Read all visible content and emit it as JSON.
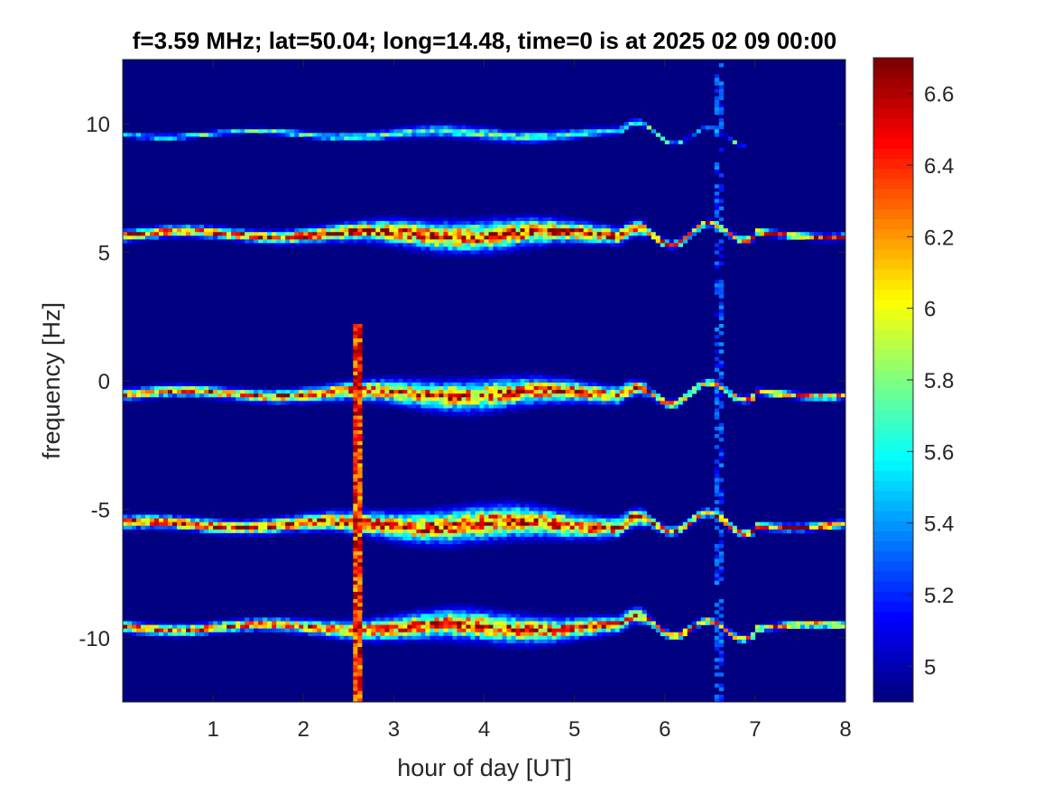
{
  "chart_data": {
    "type": "heatmap",
    "title": "f=3.59 MHz;  lat=50.04; long=14.48, time=0 is at 2025 02 09 00:00",
    "xlabel": "hour of day [UT]",
    "ylabel": "frequency [Hz]",
    "xlim": [
      0,
      8
    ],
    "ylim": [
      -12.5,
      12.5
    ],
    "x_ticks": [
      1,
      2,
      3,
      4,
      5,
      6,
      7,
      8
    ],
    "x_tick_labels": [
      "1",
      "2",
      "3",
      "4",
      "5",
      "6",
      "7",
      "8"
    ],
    "y_ticks": [
      10,
      5,
      0,
      -5,
      -10
    ],
    "y_tick_labels": [
      "10",
      "5",
      "0",
      "-5",
      "-10"
    ],
    "colorbar": {
      "colormap": "jet",
      "clim": [
        4.9,
        6.7
      ],
      "ticks": [
        6.6,
        6.4,
        6.2,
        6,
        5.8,
        5.6,
        5.4,
        5.2,
        5
      ],
      "tick_labels": [
        "6.6",
        "6.4",
        "6.2",
        "6",
        "5.8",
        "5.6",
        "5.4",
        "5.2",
        "5"
      ]
    },
    "background_value": 4.9,
    "grid": false,
    "traces": [
      {
        "center_hz": 9.6,
        "peak": 5.8,
        "width_start": 0.15,
        "width_mid": 0.35,
        "x_end": 6.9
      },
      {
        "center_hz": 5.7,
        "peak": 6.7,
        "width_start": 0.3,
        "width_mid": 0.8,
        "x_end": 8.0
      },
      {
        "center_hz": -0.5,
        "peak": 6.6,
        "width_start": 0.3,
        "width_mid": 0.8,
        "x_end": 8.0
      },
      {
        "center_hz": -5.6,
        "peak": 6.7,
        "width_start": 0.35,
        "width_mid": 0.9,
        "x_end": 8.0
      },
      {
        "center_hz": -9.6,
        "peak": 6.6,
        "width_start": 0.3,
        "width_mid": 0.8,
        "x_end": 8.0
      }
    ],
    "vertical_features": [
      {
        "x": 2.6,
        "type": "spike",
        "peak": 6.7
      },
      {
        "x": 6.6,
        "type": "faint",
        "peak": 5.4
      }
    ]
  }
}
